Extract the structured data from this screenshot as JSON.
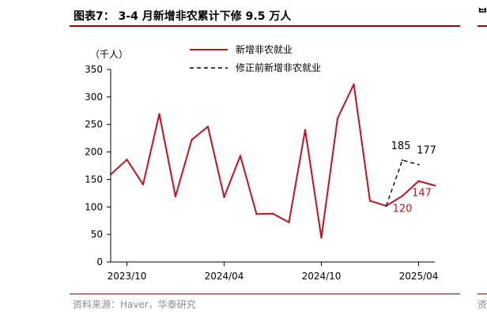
{
  "header": {
    "title": "图表7： 3-4 月新增非农累计下修 9.5 万人",
    "right_title_fragment": "ᄇ"
  },
  "footer": {
    "source": "资料来源：Haver，华泰研究",
    "right_source_fragment": "资"
  },
  "colors": {
    "accent": "#a50000",
    "series_main": "#c8101c",
    "series_revised": "#000000"
  },
  "chart_data": {
    "type": "line",
    "ylabel": "（千人）",
    "ylim": [
      0,
      350
    ],
    "yticks": [
      "0",
      "50",
      "100",
      "150",
      "200",
      "250",
      "300",
      "350"
    ],
    "xtick_labels": [
      "2023/10",
      "2024/04",
      "2024/10",
      "2025/04"
    ],
    "legend_position": "top-center",
    "x": [
      "2023/09",
      "2023/10",
      "2023/11",
      "2023/12",
      "2024/01",
      "2024/02",
      "2024/03",
      "2024/04",
      "2024/05",
      "2024/06",
      "2024/07",
      "2024/08",
      "2024/09",
      "2024/10",
      "2024/11",
      "2024/12",
      "2025/01",
      "2025/02",
      "2025/03",
      "2025/04",
      "2025/05"
    ],
    "series": [
      {
        "name": "新增非农就业",
        "style": "solid",
        "values": [
          159,
          186,
          141,
          269,
          119,
          222,
          246,
          118,
          193,
          87,
          88,
          72,
          240,
          44,
          261,
          323,
          111,
          102,
          120,
          147,
          139
        ]
      },
      {
        "name": "修正前新增非农就业",
        "style": "dashed",
        "x": [
          "2025/02",
          "2025/03",
          "2025/04"
        ],
        "values": [
          102,
          185,
          177
        ]
      }
    ],
    "annotations": [
      {
        "text": "185",
        "x": "2025/03",
        "y": 185,
        "series": "修正前新增非农就业"
      },
      {
        "text": "177",
        "x": "2025/04",
        "y": 177,
        "series": "修正前新增非农就业"
      },
      {
        "text": "120",
        "x": "2025/03",
        "y": 120,
        "series": "新增非农就业"
      },
      {
        "text": "147",
        "x": "2025/04",
        "y": 147,
        "series": "新增非农就业"
      }
    ]
  }
}
